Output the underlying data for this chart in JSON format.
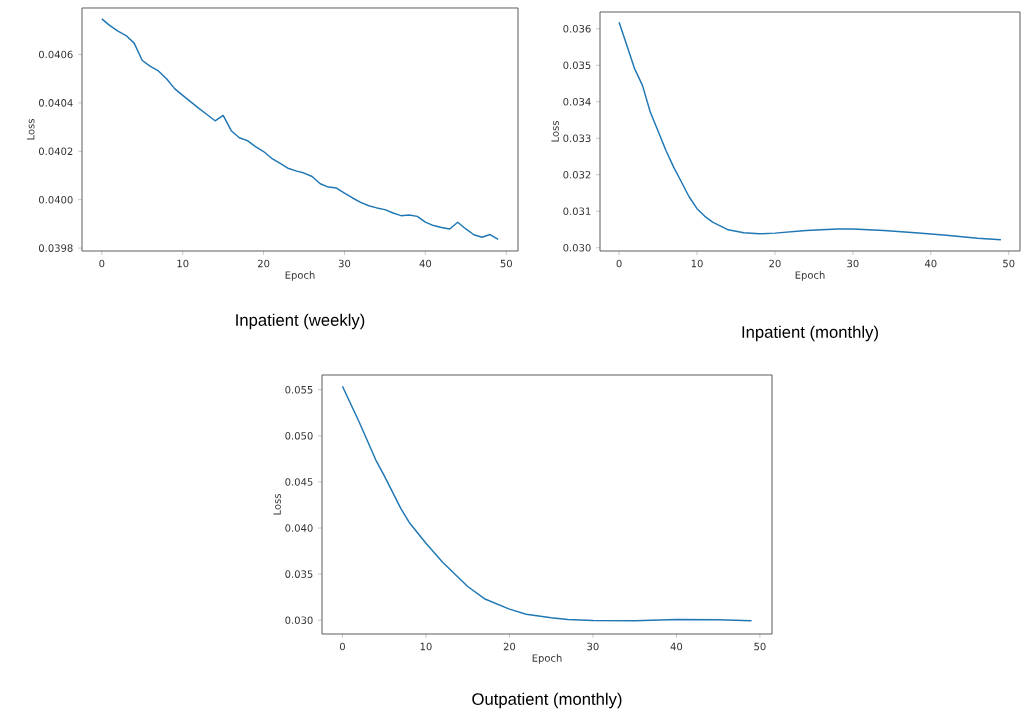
{
  "chart_data": [
    {
      "type": "line",
      "title": "Inpatient (weekly)",
      "xlabel": "Epoch",
      "ylabel": "Loss",
      "x": [
        0,
        1,
        2,
        3,
        4,
        5,
        6,
        7,
        8,
        9,
        10,
        11,
        12,
        13,
        14,
        15,
        16,
        17,
        18,
        19,
        20,
        21,
        22,
        23,
        24,
        25,
        26,
        27,
        28,
        29,
        30,
        31,
        32,
        33,
        34,
        35,
        36,
        37,
        38,
        39,
        40,
        41,
        42,
        43,
        44,
        45,
        46,
        47,
        48,
        49
      ],
      "series": [
        {
          "color": "#1f77b4",
          "values": [
            0.040747,
            0.040719,
            0.040696,
            0.040678,
            0.040647,
            0.040575,
            0.040551,
            0.040532,
            0.0405,
            0.040459,
            0.040431,
            0.040404,
            0.040377,
            0.040352,
            0.040326,
            0.040348,
            0.040285,
            0.040256,
            0.040244,
            0.040219,
            0.040199,
            0.040171,
            0.040151,
            0.04013,
            0.040119,
            0.04011,
            0.040096,
            0.040066,
            0.040052,
            0.040048,
            0.040027,
            0.040007,
            0.039989,
            0.039975,
            0.039966,
            0.039959,
            0.039945,
            0.039934,
            0.039937,
            0.039931,
            0.039907,
            0.039893,
            0.039885,
            0.039879,
            0.039907,
            0.039879,
            0.039855,
            0.039845,
            0.039856,
            0.039836
          ]
        }
      ],
      "xlim": [
        -2.45,
        51.45
      ],
      "ylim": [
        0.039788,
        0.040792
      ],
      "xticks": [
        0,
        10,
        20,
        30,
        40,
        50
      ],
      "yticks": [
        {
          "value": 0.0398,
          "label": "0.0398"
        },
        {
          "value": 0.04,
          "label": "0.0400"
        },
        {
          "value": 0.0402,
          "label": "0.0402"
        },
        {
          "value": 0.0404,
          "label": "0.0404"
        },
        {
          "value": 0.0406,
          "label": "0.0406"
        }
      ]
    },
    {
      "type": "line",
      "title": "Inpatient (monthly)",
      "xlabel": "Epoch",
      "ylabel": "Loss",
      "x": [
        0,
        1,
        2,
        3,
        4,
        5,
        6,
        7,
        8,
        9,
        10,
        11,
        12,
        14,
        16,
        18,
        20,
        24,
        28,
        30,
        34,
        38,
        42,
        46,
        49
      ],
      "series": [
        {
          "color": "#1f77b4",
          "values": [
            0.03618,
            0.03554,
            0.0349,
            0.03445,
            0.03372,
            0.0332,
            0.03267,
            0.03221,
            0.0318,
            0.03139,
            0.03107,
            0.03086,
            0.0307,
            0.03049,
            0.03041,
            0.03038,
            0.0304,
            0.03047,
            0.03051,
            0.03051,
            0.03047,
            0.03041,
            0.03034,
            0.03026,
            0.03022
          ]
        }
      ],
      "xlim": [
        -2.45,
        51.45
      ],
      "ylim": [
        0.02991,
        0.03646
      ],
      "xticks": [
        0,
        10,
        20,
        30,
        40,
        50
      ],
      "yticks": [
        {
          "value": 0.03,
          "label": "0.030"
        },
        0.031,
        0.032,
        0.033,
        0.034,
        0.035,
        0.036
      ]
    },
    {
      "type": "line",
      "title": "Outpatient (monthly)",
      "xlabel": "Epoch",
      "ylabel": "Loss",
      "x": [
        0,
        2,
        4,
        5,
        7,
        8,
        10,
        12,
        15,
        17,
        20,
        22,
        25,
        27,
        30,
        35,
        40,
        45,
        49
      ],
      "series": [
        {
          "color": "#1f77b4",
          "values": [
            0.05538,
            0.0515,
            0.04737,
            0.04568,
            0.0421,
            0.0406,
            0.03835,
            0.03628,
            0.03365,
            0.03233,
            0.0312,
            0.03064,
            0.03026,
            0.03008,
            0.02996,
            0.02994,
            0.03008,
            0.03004,
            0.02993
          ]
        }
      ],
      "xlim": [
        -2.45,
        51.45
      ],
      "ylim": [
        0.0285,
        0.0566
      ],
      "xticks": [
        0,
        10,
        20,
        30,
        40,
        50
      ],
      "yticks": [
        {
          "value": 0.03,
          "label": "0.030"
        },
        0.035,
        {
          "value": 0.04,
          "label": "0.040"
        },
        0.045,
        {
          "value": 0.05,
          "label": "0.050"
        },
        0.055
      ]
    }
  ]
}
